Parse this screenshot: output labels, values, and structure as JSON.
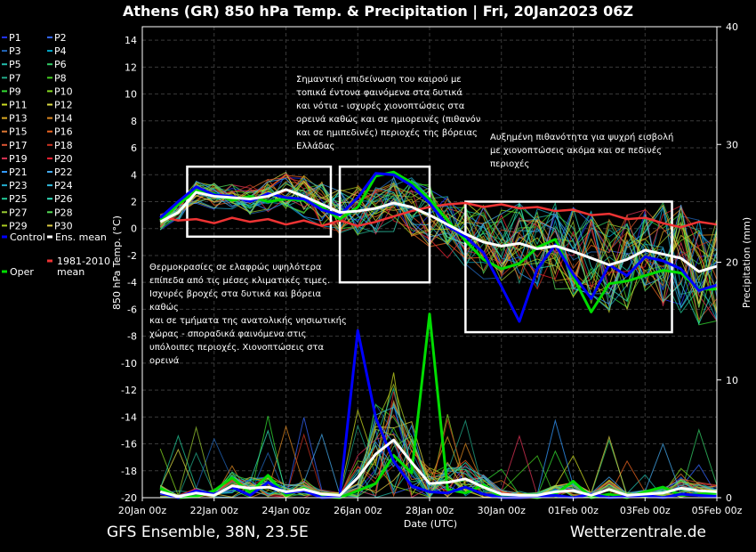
{
  "chart_data": {
    "type": "line",
    "title": "Athens  (GR)  850 hPa Temp. & Precipitation | Fri, 20Jan2023 06Z",
    "xlabel": "Date (UTC)",
    "ylabel": "850 hPa Temp. (°C)",
    "y2label": "Precipitation (mm)",
    "ylim": [
      -20,
      15
    ],
    "y2lim": [
      0,
      40
    ],
    "yticks": [
      -20,
      -18,
      -16,
      -14,
      -12,
      -10,
      -8,
      -6,
      -4,
      -2,
      0,
      2,
      4,
      6,
      8,
      10,
      12,
      14
    ],
    "y2ticks": [
      0,
      10,
      20,
      30,
      40
    ],
    "xlim": [
      "2023-01-20 00:00",
      "2023-02-05 00:00"
    ],
    "xticks": [
      "20Jan 00z",
      "22Jan 00z",
      "24Jan 00z",
      "26Jan 00z",
      "28Jan 00z",
      "30Jan 00z",
      "01Feb 00z",
      "03Feb 00z",
      "05Feb 00z"
    ],
    "grid": true,
    "legend_position": "left",
    "legend": [
      {
        "name": "P1",
        "color": "#2233ff"
      },
      {
        "name": "P2",
        "color": "#3366ff"
      },
      {
        "name": "P3",
        "color": "#2266bb"
      },
      {
        "name": "P4",
        "color": "#00aacc"
      },
      {
        "name": "P5",
        "color": "#22bbaa"
      },
      {
        "name": "P6",
        "color": "#33cc66"
      },
      {
        "name": "P7",
        "color": "#22aa88"
      },
      {
        "name": "P8",
        "color": "#44cc22"
      },
      {
        "name": "P9",
        "color": "#33dd33"
      },
      {
        "name": "P10",
        "color": "#88dd22"
      },
      {
        "name": "P11",
        "color": "#ccdd22"
      },
      {
        "name": "P12",
        "color": "#dddd44"
      },
      {
        "name": "P13",
        "color": "#ddaa22"
      },
      {
        "name": "P14",
        "color": "#dd8822"
      },
      {
        "name": "P15",
        "color": "#dd7733"
      },
      {
        "name": "P16",
        "color": "#ee6622"
      },
      {
        "name": "P17",
        "color": "#dd5533"
      },
      {
        "name": "P18",
        "color": "#cc3322"
      },
      {
        "name": "P19",
        "color": "#dd3355"
      },
      {
        "name": "P20",
        "color": "#ee2233"
      },
      {
        "name": "P21",
        "color": "#3399ff"
      },
      {
        "name": "P22",
        "color": "#44aaee"
      },
      {
        "name": "P23",
        "color": "#22aacc"
      },
      {
        "name": "P24",
        "color": "#33bbdd"
      },
      {
        "name": "P25",
        "color": "#22cc99"
      },
      {
        "name": "P26",
        "color": "#33ddbb"
      },
      {
        "name": "P27",
        "color": "#99cc33"
      },
      {
        "name": "P28",
        "color": "#55dd55"
      },
      {
        "name": "P29",
        "color": "#aacc22"
      },
      {
        "name": "P30",
        "color": "#ddcc44"
      },
      {
        "name": "Control",
        "color": "#0000ff"
      },
      {
        "name": "Ens. mean",
        "color": "#ffffff"
      },
      {
        "name": "Oper",
        "color": "#00dd00"
      },
      {
        "name": "1981-2010 mean",
        "color": "#ee3333"
      }
    ],
    "series": [
      {
        "name": "Ens. mean",
        "axis": "temperature",
        "x": [
          "2023-01-20 12:00",
          "2023-01-21 00:00",
          "2023-01-21 12:00",
          "2023-01-22 00:00",
          "2023-01-22 12:00",
          "2023-01-23 00:00",
          "2023-01-23 12:00",
          "2023-01-24 00:00",
          "2023-01-24 12:00",
          "2023-01-25 00:00",
          "2023-01-25 12:00",
          "2023-01-26 00:00",
          "2023-01-26 12:00",
          "2023-01-27 00:00",
          "2023-01-27 12:00",
          "2023-01-28 00:00",
          "2023-01-28 12:00",
          "2023-01-29 00:00",
          "2023-01-29 12:00",
          "2023-01-30 00:00",
          "2023-01-30 12:00",
          "2023-01-31 00:00",
          "2023-01-31 12:00",
          "2023-02-01 00:00",
          "2023-02-01 12:00",
          "2023-02-02 00:00",
          "2023-02-02 12:00",
          "2023-02-03 00:00",
          "2023-02-03 12:00",
          "2023-02-04 00:00",
          "2023-02-04 12:00",
          "2023-02-05 00:00"
        ],
        "values": [
          0.5,
          1.2,
          2.7,
          2.4,
          2.3,
          2.2,
          2.4,
          2.9,
          2.4,
          1.8,
          1.2,
          1.3,
          1.5,
          1.9,
          1.6,
          1.0,
          0.3,
          -0.4,
          -1.0,
          -1.3,
          -1.1,
          -1.5,
          -1.3,
          -1.7,
          -2.2,
          -2.7,
          -2.3,
          -1.6,
          -1.9,
          -2.2,
          -3.2,
          -2.8
        ]
      },
      {
        "name": "Control",
        "axis": "temperature",
        "x": [
          "2023-01-20 12:00",
          "2023-01-21 00:00",
          "2023-01-21 12:00",
          "2023-01-22 00:00",
          "2023-01-22 12:00",
          "2023-01-23 00:00",
          "2023-01-23 12:00",
          "2023-01-24 00:00",
          "2023-01-24 12:00",
          "2023-01-25 00:00",
          "2023-01-25 12:00",
          "2023-01-26 00:00",
          "2023-01-26 12:00",
          "2023-01-27 00:00",
          "2023-01-27 12:00",
          "2023-01-28 00:00",
          "2023-01-28 12:00",
          "2023-01-29 00:00",
          "2023-01-29 12:00",
          "2023-01-30 00:00",
          "2023-01-30 12:00",
          "2023-01-31 00:00",
          "2023-01-31 12:00",
          "2023-02-01 00:00",
          "2023-02-01 12:00",
          "2023-02-02 00:00",
          "2023-02-02 12:00",
          "2023-02-03 00:00",
          "2023-02-03 12:00",
          "2023-02-04 00:00",
          "2023-02-04 12:00",
          "2023-02-05 00:00"
        ],
        "values": [
          0.8,
          2.0,
          3.1,
          2.5,
          2.4,
          2.0,
          2.6,
          2.3,
          2.2,
          1.4,
          1.0,
          2.3,
          4.1,
          4.0,
          3.2,
          1.9,
          0.2,
          -0.6,
          -1.8,
          -4.3,
          -6.9,
          -3.0,
          -1.2,
          -3.4,
          -5.2,
          -2.7,
          -3.5,
          -2.1,
          -2.4,
          -3.0,
          -4.6,
          -4.2
        ]
      },
      {
        "name": "Oper",
        "axis": "temperature",
        "x": [
          "2023-01-20 12:00",
          "2023-01-21 00:00",
          "2023-01-21 12:00",
          "2023-01-22 00:00",
          "2023-01-22 12:00",
          "2023-01-23 00:00",
          "2023-01-23 12:00",
          "2023-01-24 00:00",
          "2023-01-24 12:00",
          "2023-01-25 00:00",
          "2023-01-25 12:00",
          "2023-01-26 00:00",
          "2023-01-26 12:00",
          "2023-01-27 00:00",
          "2023-01-27 12:00",
          "2023-01-28 00:00",
          "2023-01-28 12:00",
          "2023-01-29 00:00",
          "2023-01-29 12:00",
          "2023-01-30 00:00",
          "2023-01-30 12:00",
          "2023-01-31 00:00",
          "2023-01-31 12:00",
          "2023-02-01 00:00",
          "2023-02-01 12:00",
          "2023-02-02 00:00",
          "2023-02-02 12:00",
          "2023-02-03 00:00",
          "2023-02-03 12:00",
          "2023-02-04 00:00",
          "2023-02-04 12:00",
          "2023-02-05 00:00"
        ],
        "values": [
          0.6,
          1.8,
          2.8,
          2.6,
          2.1,
          2.4,
          2.0,
          2.2,
          2.1,
          1.6,
          0.7,
          1.6,
          3.9,
          4.2,
          3.4,
          2.2,
          0.6,
          -0.9,
          -2.3,
          -3.0,
          -2.6,
          -1.4,
          -0.8,
          -3.6,
          -6.2,
          -4.1,
          -3.9,
          -3.5,
          -3.1,
          -3.3,
          -4.5,
          -4.5
        ]
      },
      {
        "name": "1981-2010 mean",
        "axis": "temperature",
        "x": [
          "2023-01-20 12:00",
          "2023-01-21 00:00",
          "2023-01-21 12:00",
          "2023-01-22 00:00",
          "2023-01-22 12:00",
          "2023-01-23 00:00",
          "2023-01-23 12:00",
          "2023-01-24 00:00",
          "2023-01-24 12:00",
          "2023-01-25 00:00",
          "2023-01-25 12:00",
          "2023-01-26 00:00",
          "2023-01-26 12:00",
          "2023-01-27 00:00",
          "2023-01-27 12:00",
          "2023-01-28 00:00",
          "2023-01-28 12:00",
          "2023-01-29 00:00",
          "2023-01-29 12:00",
          "2023-01-30 00:00",
          "2023-01-30 12:00",
          "2023-01-31 00:00",
          "2023-01-31 12:00",
          "2023-02-01 00:00",
          "2023-02-01 12:00",
          "2023-02-02 00:00",
          "2023-02-02 12:00",
          "2023-02-03 00:00",
          "2023-02-03 12:00",
          "2023-02-04 00:00",
          "2023-02-04 12:00",
          "2023-02-05 00:00"
        ],
        "values": [
          0.9,
          0.6,
          0.7,
          0.4,
          0.8,
          0.5,
          0.7,
          0.3,
          0.6,
          0.2,
          0.6,
          0.2,
          0.5,
          0.9,
          1.3,
          1.6,
          1.8,
          1.9,
          1.6,
          1.8,
          1.5,
          1.6,
          1.3,
          1.4,
          1.0,
          1.1,
          0.7,
          0.8,
          0.4,
          0.1,
          0.5,
          0.3
        ]
      },
      {
        "name": "Ens. mean",
        "axis": "precipitation",
        "x": [
          "2023-01-20 12:00",
          "2023-01-21 00:00",
          "2023-01-21 12:00",
          "2023-01-22 00:00",
          "2023-01-22 12:00",
          "2023-01-23 00:00",
          "2023-01-23 12:00",
          "2023-01-24 00:00",
          "2023-01-24 12:00",
          "2023-01-25 00:00",
          "2023-01-25 12:00",
          "2023-01-26 00:00",
          "2023-01-26 12:00",
          "2023-01-27 00:00",
          "2023-01-27 12:00",
          "2023-01-28 00:00",
          "2023-01-28 12:00",
          "2023-01-29 00:00",
          "2023-01-29 12:00",
          "2023-01-30 00:00",
          "2023-01-30 12:00",
          "2023-01-31 00:00",
          "2023-01-31 12:00",
          "2023-02-01 00:00",
          "2023-02-01 12:00",
          "2023-02-02 00:00",
          "2023-02-02 12:00",
          "2023-02-03 00:00",
          "2023-02-03 12:00",
          "2023-02-04 00:00",
          "2023-02-04 12:00",
          "2023-02-05 00:00"
        ],
        "values": [
          0.5,
          0.1,
          0.4,
          0.2,
          1.0,
          0.8,
          0.9,
          0.5,
          0.7,
          0.3,
          0.2,
          1.7,
          3.7,
          4.9,
          3.0,
          1.2,
          1.3,
          1.6,
          0.9,
          0.3,
          0.2,
          0.2,
          0.5,
          0.6,
          0.2,
          0.7,
          0.2,
          0.3,
          0.4,
          0.8,
          0.6,
          0.5
        ]
      },
      {
        "name": "Oper",
        "axis": "precipitation",
        "x": [
          "2023-01-20 12:00",
          "2023-01-21 00:00",
          "2023-01-21 12:00",
          "2023-01-22 00:00",
          "2023-01-22 12:00",
          "2023-01-23 00:00",
          "2023-01-23 12:00",
          "2023-01-24 00:00",
          "2023-01-24 12:00",
          "2023-01-25 00:00",
          "2023-01-25 12:00",
          "2023-01-26 00:00",
          "2023-01-26 12:00",
          "2023-01-27 00:00",
          "2023-01-27 12:00",
          "2023-01-28 00:00",
          "2023-01-28 12:00",
          "2023-01-29 00:00",
          "2023-01-29 12:00",
          "2023-01-30 00:00",
          "2023-01-30 12:00",
          "2023-01-31 00:00",
          "2023-01-31 12:00",
          "2023-02-01 00:00",
          "2023-02-01 12:00",
          "2023-02-02 00:00",
          "2023-02-02 12:00",
          "2023-02-03 00:00",
          "2023-02-03 12:00",
          "2023-02-04 00:00",
          "2023-02-04 12:00",
          "2023-02-05 00:00"
        ],
        "values": [
          0.8,
          0.0,
          0.1,
          0.6,
          1.7,
          0.4,
          1.9,
          0.2,
          0.8,
          0.1,
          0.0,
          0.6,
          1.2,
          3.6,
          2.1,
          15.6,
          0.7,
          0.4,
          1.1,
          0.0,
          0.2,
          0.0,
          0.3,
          1.4,
          0.0,
          0.3,
          0.0,
          0.5,
          0.9,
          0.2,
          0.3,
          0.4
        ]
      },
      {
        "name": "Control",
        "axis": "precipitation",
        "x": [
          "2023-01-20 12:00",
          "2023-01-21 00:00",
          "2023-01-21 12:00",
          "2023-01-22 00:00",
          "2023-01-22 12:00",
          "2023-01-23 00:00",
          "2023-01-23 12:00",
          "2023-01-24 00:00",
          "2023-01-24 12:00",
          "2023-01-25 00:00",
          "2023-01-25 12:00",
          "2023-01-26 00:00",
          "2023-01-26 12:00",
          "2023-01-27 00:00",
          "2023-01-27 12:00",
          "2023-01-28 00:00",
          "2023-01-28 12:00",
          "2023-01-29 00:00",
          "2023-01-29 12:00",
          "2023-01-30 00:00",
          "2023-01-30 12:00",
          "2023-01-31 00:00",
          "2023-01-31 12:00",
          "2023-02-01 00:00",
          "2023-02-01 12:00",
          "2023-02-02 00:00",
          "2023-02-02 12:00",
          "2023-02-03 00:00",
          "2023-02-03 12:00",
          "2023-02-04 00:00",
          "2023-02-04 12:00",
          "2023-02-05 00:00"
        ],
        "values": [
          0.4,
          0.0,
          0.6,
          0.3,
          0.9,
          0.2,
          1.3,
          0.4,
          0.6,
          0.0,
          0.1,
          14.2,
          6.8,
          3.1,
          1.0,
          0.5,
          0.4,
          0.9,
          0.3,
          0.0,
          0.0,
          0.1,
          0.2,
          0.0,
          0.3,
          0.0,
          0.1,
          0.2,
          0.0,
          0.3,
          0.2,
          0.1
        ]
      }
    ],
    "highlight_boxes": [
      {
        "x_start": "2023-01-21 06:00",
        "x_end": "2023-01-25 06:00",
        "y_top": 4.6,
        "y_bottom": -0.6
      },
      {
        "x_start": "2023-01-25 12:00",
        "x_end": "2023-01-28 00:00",
        "y_top": 4.6,
        "y_bottom": -4.0
      },
      {
        "x_start": "2023-01-29 00:00",
        "x_end": "2023-02-03 18:00",
        "y_top": 2.0,
        "y_bottom": -7.7
      }
    ]
  },
  "annotations": {
    "north": "Σημαντική επιδείνωση του καιρού με\nτοπικά έντονα φαινόμενα στα δυτικά\nκαι νότια - ισχυρές χιονοπτώσεις στα\nορεινά καθώς και σε ημιορεινές (πιθανόν\nκαι σε ημιπεδινές) περιοχές της βόρειας\nΕλλάδας",
    "east": "Αυξημένη πιθανότητα για ψυχρή εισβολή\nμε χιονοπτώσεις ακόμα και σε πεδινές\nπεριοχές",
    "west": "Θερμοκρασίες σε ελαφρώς υψηλότερα\nεπίπεδα από τις μέσες κλιματικές τιμες.\nΙσχυρές βροχές στα δυτικά και βόρεια καθώς\nκαι σε τμήματα της ανατολικής νησιωτικής\nχώρας - σποραδικά φαινόμενα στις\nυπόλοιπες περιοχές. Χιονοπτώσεις στα\nορεινά"
  },
  "footer": {
    "left": "GFS Ensemble, 38N, 23.5E",
    "right": "Wetterzentrale.de"
  }
}
